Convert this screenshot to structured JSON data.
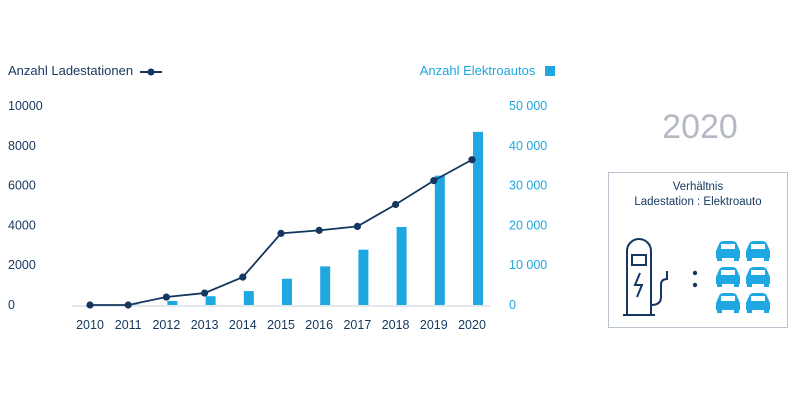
{
  "chart_data": {
    "type": "bar+line",
    "categories": [
      "2010",
      "2011",
      "2012",
      "2013",
      "2014",
      "2015",
      "2016",
      "2017",
      "2018",
      "2019",
      "2020"
    ],
    "series": [
      {
        "name": "Anzahl Ladestationen",
        "kind": "line",
        "axis": "left",
        "color": "#15375f",
        "values": [
          0,
          0,
          400,
          600,
          1400,
          3600,
          3750,
          3950,
          5050,
          6250,
          7300
        ]
      },
      {
        "name": "Anzahl Elektroautos",
        "kind": "bar",
        "axis": "right",
        "color": "#1ea7e1",
        "values": [
          0,
          100,
          1000,
          2200,
          3500,
          6600,
          9700,
          13900,
          19600,
          32500,
          43500
        ]
      }
    ],
    "y_left": {
      "ylim": [
        0,
        10000
      ],
      "ticks": [
        "0",
        "2000",
        "4000",
        "6000",
        "8000",
        "10000"
      ]
    },
    "y_right": {
      "ylim": [
        0,
        50000
      ],
      "ticks": [
        "0",
        "10 000",
        "20 000",
        "30 000",
        "40 000",
        "50 000"
      ]
    },
    "legend": {
      "left_label": "Anzahl Ladestationen",
      "right_label": "Anzahl Elektroautos",
      "placement": "top"
    },
    "grid": false
  },
  "side_panel": {
    "year": "2020",
    "ratio_title_line1": "Verhältnis",
    "ratio_title_line2": "Ladestation : Elektroauto",
    "car_count": 6,
    "station_color": "#15375f",
    "car_color": "#1ea7e1"
  }
}
